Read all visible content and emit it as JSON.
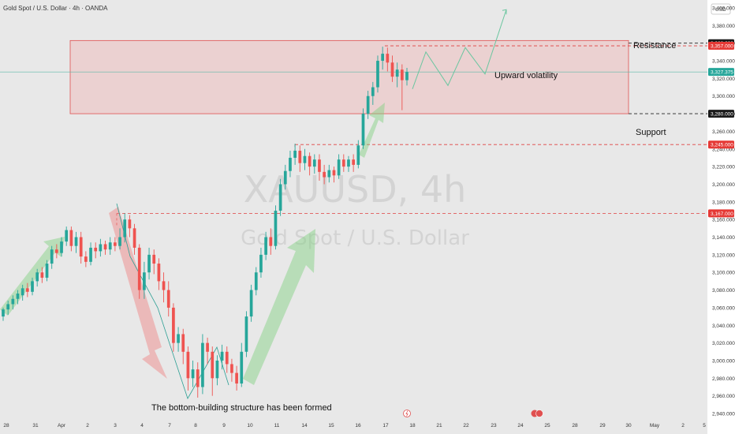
{
  "header": {
    "symbol_label": "Gold Spot / U.S. Dollar · 4h · OANDA",
    "currency": "USD"
  },
  "watermark": {
    "ticker": "XAUUSD, 4h",
    "name": "Gold Spot / U.S. Dollar"
  },
  "colors": {
    "up": "#26a69a",
    "down": "#ef5350",
    "zone": "#f28b8b",
    "arrow_green": "#7ed07e",
    "arrow_red": "#f08080",
    "path_line": "#6cc6a0"
  },
  "annotations": {
    "resistance": "Resistance",
    "support": "Support",
    "volatility": "Upward volatility",
    "bottom": "The bottom-building structure has been formed"
  },
  "chart_data": {
    "type": "candlestick",
    "ylim": [
      2930,
      3410
    ],
    "y_ticks": [
      "3,400.000",
      "3,380.000",
      "3,360.000",
      "3,340.000",
      "3,320.000",
      "3,300.000",
      "3,280.000",
      "3,260.000",
      "3,240.000",
      "3,220.000",
      "3,200.000",
      "3,180.000",
      "3,160.000",
      "3,140.000",
      "3,120.000",
      "3,100.000",
      "3,080.000",
      "3,060.000",
      "3,040.000",
      "3,020.000",
      "3,000.000",
      "2,980.000",
      "2,960.000",
      "2,940.000"
    ],
    "x_ticks": [
      "28",
      "31",
      "Apr",
      "2",
      "3",
      "4",
      "7",
      "8",
      "9",
      "10",
      "11",
      "14",
      "15",
      "16",
      "17",
      "18",
      "21",
      "22",
      "23",
      "24",
      "25",
      "28",
      "29",
      "30",
      "May",
      "2",
      "5"
    ],
    "price_tags": [
      {
        "label": "3,360.000",
        "value": 3360,
        "style": "black"
      },
      {
        "label": "3,357.000",
        "value": 3357,
        "style": "red"
      },
      {
        "label": "3,327.375",
        "value": 3327.375,
        "style": "green"
      },
      {
        "label": "3,280.000",
        "value": 3280,
        "style": "black"
      },
      {
        "label": "3,245.000",
        "value": 3245,
        "style": "red"
      },
      {
        "label": "3,167.000",
        "value": 3167,
        "style": "red"
      }
    ],
    "levels": {
      "resistance": 3360,
      "resistance_top": 3357,
      "support": 3280,
      "level_3245": 3245,
      "level_3167": 3167,
      "current": 3327.375
    },
    "candles": [
      [
        3050,
        3058,
        3045,
        3060
      ],
      [
        3058,
        3064,
        3052,
        3068
      ],
      [
        3064,
        3070,
        3058,
        3074
      ],
      [
        3070,
        3076,
        3064,
        3080
      ],
      [
        3074,
        3082,
        3068,
        3086
      ],
      [
        3082,
        3078,
        3072,
        3088
      ],
      [
        3078,
        3090,
        3074,
        3094
      ],
      [
        3090,
        3100,
        3084,
        3104
      ],
      [
        3100,
        3094,
        3088,
        3106
      ],
      [
        3094,
        3110,
        3090,
        3114
      ],
      [
        3110,
        3126,
        3104,
        3130
      ],
      [
        3126,
        3122,
        3116,
        3132
      ],
      [
        3122,
        3135,
        3118,
        3140
      ],
      [
        3135,
        3148,
        3130,
        3152
      ],
      [
        3148,
        3130,
        3124,
        3152
      ],
      [
        3130,
        3140,
        3122,
        3146
      ],
      [
        3140,
        3118,
        3110,
        3146
      ],
      [
        3118,
        3112,
        3106,
        3124
      ],
      [
        3112,
        3128,
        3108,
        3134
      ],
      [
        3128,
        3124,
        3116,
        3134
      ],
      [
        3124,
        3132,
        3118,
        3138
      ],
      [
        3132,
        3126,
        3120,
        3136
      ],
      [
        3126,
        3134,
        3120,
        3140
      ],
      [
        3134,
        3130,
        3124,
        3140
      ],
      [
        3130,
        3140,
        3126,
        3150
      ],
      [
        3140,
        3160,
        3134,
        3167
      ],
      [
        3160,
        3150,
        3140,
        3165
      ],
      [
        3150,
        3128,
        3120,
        3155
      ],
      [
        3128,
        3080,
        3070,
        3132
      ],
      [
        3080,
        3100,
        3070,
        3112
      ],
      [
        3100,
        3120,
        3092,
        3128
      ],
      [
        3120,
        3110,
        3098,
        3126
      ],
      [
        3110,
        3090,
        3080,
        3116
      ],
      [
        3090,
        3080,
        3066,
        3100
      ],
      [
        3080,
        3060,
        3050,
        3090
      ],
      [
        3060,
        3020,
        3010,
        3065
      ],
      [
        3020,
        3030,
        3010,
        3038
      ],
      [
        3030,
        3010,
        2996,
        3036
      ],
      [
        3010,
        2980,
        2966,
        3016
      ],
      [
        2980,
        2990,
        2970,
        3000
      ],
      [
        2990,
        2970,
        2958,
        2998
      ],
      [
        2970,
        3020,
        2962,
        3030
      ],
      [
        3020,
        3010,
        2996,
        3026
      ],
      [
        3010,
        2980,
        2960,
        3016
      ],
      [
        2980,
        3000,
        2972,
        3006
      ],
      [
        3000,
        3010,
        2990,
        3018
      ],
      [
        3010,
        2996,
        2986,
        3016
      ],
      [
        2996,
        2986,
        2976,
        3002
      ],
      [
        2986,
        2974,
        2966,
        2994
      ],
      [
        2974,
        3010,
        2970,
        3020
      ],
      [
        3010,
        3050,
        3004,
        3056
      ],
      [
        3050,
        3080,
        3044,
        3086
      ],
      [
        3080,
        3100,
        3074,
        3106
      ],
      [
        3100,
        3120,
        3094,
        3128
      ],
      [
        3120,
        3140,
        3114,
        3146
      ],
      [
        3140,
        3130,
        3120,
        3150
      ],
      [
        3130,
        3170,
        3126,
        3176
      ],
      [
        3170,
        3200,
        3164,
        3206
      ],
      [
        3200,
        3215,
        3194,
        3222
      ],
      [
        3215,
        3230,
        3208,
        3238
      ],
      [
        3230,
        3238,
        3222,
        3246
      ],
      [
        3238,
        3224,
        3214,
        3244
      ],
      [
        3224,
        3232,
        3216,
        3240
      ],
      [
        3232,
        3220,
        3210,
        3236
      ],
      [
        3220,
        3228,
        3212,
        3234
      ],
      [
        3228,
        3214,
        3204,
        3234
      ],
      [
        3214,
        3208,
        3200,
        3222
      ],
      [
        3208,
        3216,
        3202,
        3222
      ],
      [
        3216,
        3210,
        3202,
        3220
      ],
      [
        3210,
        3228,
        3206,
        3234
      ],
      [
        3228,
        3220,
        3214,
        3234
      ],
      [
        3220,
        3228,
        3214,
        3232
      ],
      [
        3228,
        3222,
        3214,
        3234
      ],
      [
        3222,
        3244,
        3218,
        3250
      ],
      [
        3244,
        3280,
        3240,
        3286
      ],
      [
        3280,
        3300,
        3274,
        3306
      ],
      [
        3300,
        3310,
        3290,
        3316
      ],
      [
        3310,
        3340,
        3304,
        3346
      ],
      [
        3340,
        3348,
        3330,
        3356
      ],
      [
        3348,
        3338,
        3328,
        3355
      ],
      [
        3338,
        3322,
        3316,
        3346
      ],
      [
        3322,
        3330,
        3310,
        3338
      ],
      [
        3330,
        3318,
        3284,
        3336
      ],
      [
        3318,
        3327.375,
        3312,
        3332
      ]
    ],
    "projection_path": [
      [
        3308,
        523
      ],
      [
        3350,
        540
      ],
      [
        3312,
        568
      ],
      [
        3355,
        590
      ],
      [
        3325,
        615
      ],
      [
        3398,
        642
      ]
    ]
  }
}
